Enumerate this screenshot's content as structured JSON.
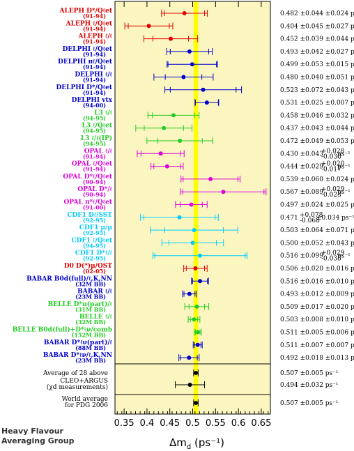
{
  "chart_data": {
    "type": "forest",
    "xlabel": "Δm",
    "xlabel_sub": "d",
    "xlabel_unit": "(ps⁻¹)",
    "xlim": [
      0.33,
      0.67
    ],
    "xticks": [
      "0.35",
      "0.4",
      "0.45",
      "0.5",
      "0.55",
      "0.6",
      "0.65"
    ],
    "band": {
      "center": 0.507,
      "halfwidth": 0.005,
      "color": "#ffff00"
    },
    "background": "#fbf6c0",
    "unit": "ps⁻¹",
    "entries": [
      {
        "label": "ALEPH D*/Qℓet",
        "sub": "(91-94)",
        "color": "#e00000",
        "value": 0.482,
        "stat": 0.044,
        "syst": 0.024,
        "text": "0.482 ±0.044 ±0.024 ps⁻¹"
      },
      {
        "label": "ALEPH ℓ/Qℓet",
        "sub": "(91-94)",
        "color": "#e00000",
        "value": 0.404,
        "stat": 0.045,
        "syst": 0.027,
        "text": "0.404 ±0.045 ±0.027 ps⁻¹"
      },
      {
        "label": "ALEPH ℓ/ℓ",
        "sub": "(91-94)",
        "color": "#e00000",
        "value": 0.452,
        "stat": 0.039,
        "syst": 0.044,
        "text": "0.452 ±0.039 ±0.044 ps⁻¹"
      },
      {
        "label": "DELPHI ℓ/Qℓet",
        "sub": "(91-94)",
        "color": "#0000cc",
        "value": 0.493,
        "stat": 0.042,
        "syst": 0.027,
        "text": "0.493 ±0.042 ±0.027 ps⁻¹"
      },
      {
        "label": "DELPHI πℓ/Qℓet",
        "sub": "(91-94)",
        "color": "#0000cc",
        "value": 0.499,
        "stat": 0.053,
        "syst": 0.015,
        "text": "0.499 ±0.053 ±0.015 ps⁻¹"
      },
      {
        "label": "DELPHI ℓ/ℓ",
        "sub": "(91-94)",
        "color": "#0000cc",
        "value": 0.48,
        "stat": 0.04,
        "syst": 0.051,
        "text": "0.480 ±0.040 ±0.051 ps⁻¹"
      },
      {
        "label": "DELPHI D*/Qℓet",
        "sub": "(91-94)",
        "color": "#0000cc",
        "value": 0.523,
        "stat": 0.072,
        "syst": 0.043,
        "text": "0.523 ±0.072 ±0.043 ps⁻¹"
      },
      {
        "label": "DELPHI vtx",
        "sub": "(94-00)",
        "color": "#0000cc",
        "value": 0.531,
        "stat": 0.025,
        "syst": 0.007,
        "text": "0.531 ±0.025 ±0.007 ps⁻¹"
      },
      {
        "label": "L3 ℓ/ℓ",
        "sub": "(94-95)",
        "color": "#22cc22",
        "value": 0.458,
        "stat": 0.046,
        "syst": 0.032,
        "text": "0.458 ±0.046 ±0.032 ps⁻¹"
      },
      {
        "label": "L3 ℓ/Qℓet",
        "sub": "(94-95)",
        "color": "#22cc22",
        "value": 0.437,
        "stat": 0.043,
        "syst": 0.044,
        "text": "0.437 ±0.043 ±0.044 ps⁻¹"
      },
      {
        "label": "L3 ℓ/ℓ(IP)",
        "sub": "(94-95)",
        "color": "#22cc22",
        "value": 0.472,
        "stat": 0.049,
        "syst": 0.053,
        "text": "0.472 ±0.049 ±0.053 ps⁻¹"
      },
      {
        "label": "OPAL ℓ/ℓ",
        "sub": "(91-94)",
        "color": "#dd00dd",
        "value": 0.43,
        "stat": 0.043,
        "syst": 0.028,
        "text": "0.430 ±0.043",
        "syst_text": "+0.028/-0.030"
      },
      {
        "label": "OPAL ℓ/Qℓet",
        "sub": "(91-94)",
        "color": "#dd00dd",
        "value": 0.444,
        "stat": 0.029,
        "syst": 0.02,
        "text": "0.444 ±0.029",
        "syst_text": "+0.020/-0.017"
      },
      {
        "label": "OPAL D*ℓ/Qℓet",
        "sub": "(90-94)",
        "color": "#dd00dd",
        "value": 0.539,
        "stat": 0.06,
        "syst": 0.024,
        "text": "0.539 ±0.060 ±0.024 ps⁻¹"
      },
      {
        "label": "OPAL D*/ℓ",
        "sub": "(90-94)",
        "color": "#dd00dd",
        "value": 0.567,
        "stat": 0.089,
        "syst": 0.029,
        "text": "0.567 ±0.089",
        "syst_text": "+0.029/-0.023"
      },
      {
        "label": "OPAL π*ℓ/Qℓet",
        "sub": "(91-00)",
        "color": "#dd00dd",
        "value": 0.497,
        "stat": 0.024,
        "syst": 0.025,
        "text": "0.497 ±0.024 ±0.025 ps⁻¹"
      },
      {
        "label": "CDF1 Dℓ/SST",
        "sub": "(92-95)",
        "color": "#00ccff",
        "value": 0.471,
        "stat": 0.078,
        "syst": 0.034,
        "text": "0.471",
        "stat_text": "+0.078/-0.068",
        "tail": "±0.034 ps⁻¹"
      },
      {
        "label": "CDF1 μ/μ",
        "sub": "(92-95)",
        "color": "#00ccff",
        "value": 0.503,
        "stat": 0.064,
        "syst": 0.071,
        "text": "0.503 ±0.064 ±0.071 ps⁻¹"
      },
      {
        "label": "CDF1 ℓ/Qℓet",
        "sub": "(94-95)",
        "color": "#00ccff",
        "value": 0.5,
        "stat": 0.052,
        "syst": 0.043,
        "text": "0.500 ±0.052 ±0.043 ps⁻¹"
      },
      {
        "label": "CDF1 D*ℓ/ℓ",
        "sub": "(92-95)",
        "color": "#00ccff",
        "value": 0.516,
        "stat": 0.099,
        "syst": 0.029,
        "text": "0.516 ±0.099",
        "syst_text": "+0.029/-0.035"
      },
      {
        "label": "D0 D(*)μ/OST",
        "sub": "(02-05)",
        "color": "#e00000",
        "value": 0.506,
        "stat": 0.02,
        "syst": 0.016,
        "text": "0.506 ±0.020 ±0.016 ps⁻¹"
      },
      {
        "label": "BABAR B0d(full)/ℓ,K,NN",
        "sub": "(32M BB)",
        "color": "#0000cc",
        "value": 0.516,
        "stat": 0.016,
        "syst": 0.01,
        "text": "0.516 ±0.016 ±0.010 ps⁻¹"
      },
      {
        "label": "BABAR ℓ/ℓ",
        "sub": "(23M BB)",
        "color": "#0000cc",
        "value": 0.493,
        "stat": 0.012,
        "syst": 0.009,
        "text": "0.493 ±0.012 ±0.009 ps⁻¹"
      },
      {
        "label": "BELLE D*π(part)/ℓ",
        "sub": "(31M BB)",
        "color": "#22cc22",
        "value": 0.509,
        "stat": 0.017,
        "syst": 0.02,
        "text": "0.509 ±0.017 ±0.020 ps⁻¹"
      },
      {
        "label": "BELLE ℓ/ℓ",
        "sub": "(32M BB)",
        "color": "#22cc22",
        "value": 0.503,
        "stat": 0.008,
        "syst": 0.01,
        "text": "0.503 ±0.008 ±0.010 ps⁻¹"
      },
      {
        "label": "BELLE B0d(full)+D*ℓν/comb",
        "sub": "(152M BB)",
        "color": "#22cc22",
        "value": 0.511,
        "stat": 0.005,
        "syst": 0.006,
        "text": "0.511 ±0.005 ±0.006 ps⁻¹"
      },
      {
        "label": "BABAR D*ℓν(part)/ℓ",
        "sub": "(88M BB)",
        "color": "#0000cc",
        "value": 0.511,
        "stat": 0.007,
        "syst": 0.007,
        "text": "0.511 ±0.007 ±0.007 ps⁻¹"
      },
      {
        "label": "BABAR D*ℓν/ℓ,K,NN",
        "sub": "(23M BB)",
        "color": "#0000cc",
        "value": 0.492,
        "stat": 0.018,
        "syst": 0.013,
        "text": "0.492 ±0.018 ±0.013 ps⁻¹"
      }
    ],
    "summaries": [
      {
        "label": "Average of 28 above",
        "sub": "",
        "value": 0.507,
        "err": 0.005,
        "text": "0.507 ±0.005 ps⁻¹"
      },
      {
        "label": "CLEO+ARGUS",
        "sub": "(χd measurements)",
        "value": 0.494,
        "err": 0.032,
        "text": "0.494 ±0.032 ps⁻¹"
      },
      {
        "label": "World average",
        "sub": "for PDG 2006",
        "value": 0.507,
        "err": 0.005,
        "text": "0.507 ±0.005 ps⁻¹"
      }
    ]
  },
  "credit": {
    "line1": "Heavy Flavour",
    "line2": "Averaging Group"
  }
}
